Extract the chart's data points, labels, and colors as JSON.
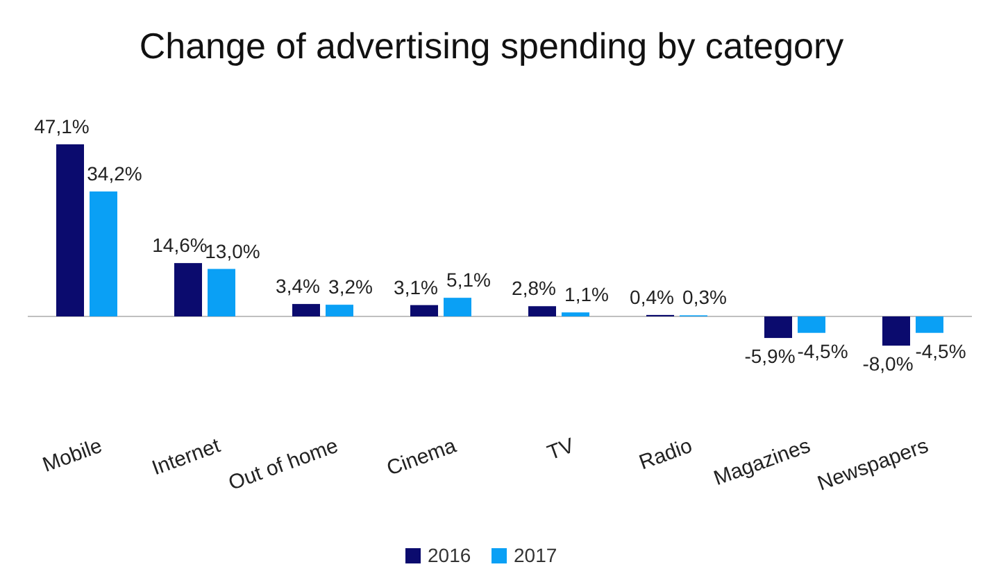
{
  "chart_data": {
    "type": "bar",
    "title": "Change of advertising spending by category",
    "categories": [
      "Mobile",
      "Internet",
      "Out of home",
      "Cinema",
      "TV",
      "Radio",
      "Magazines",
      "Newspapers"
    ],
    "series": [
      {
        "name": "2016",
        "color": "#0b0b6e",
        "values": [
          47.1,
          14.6,
          3.4,
          3.1,
          2.8,
          0.4,
          -5.9,
          -8.0
        ],
        "value_labels": [
          "47,1%",
          "14,6%",
          "3,4%",
          "3,1%",
          "2,8%",
          "0,4%",
          "-5,9%",
          "-8,0%"
        ]
      },
      {
        "name": "2017",
        "color": "#0aa0f5",
        "values": [
          34.2,
          13.0,
          3.2,
          5.1,
          1.1,
          0.3,
          -4.5,
          -4.5
        ],
        "value_labels": [
          "34,2%",
          "13,0%",
          "3,2%",
          "5,1%",
          "1,1%",
          "0,3%",
          "-4,5%",
          "-4,5%"
        ]
      }
    ],
    "legend": "bottom"
  }
}
